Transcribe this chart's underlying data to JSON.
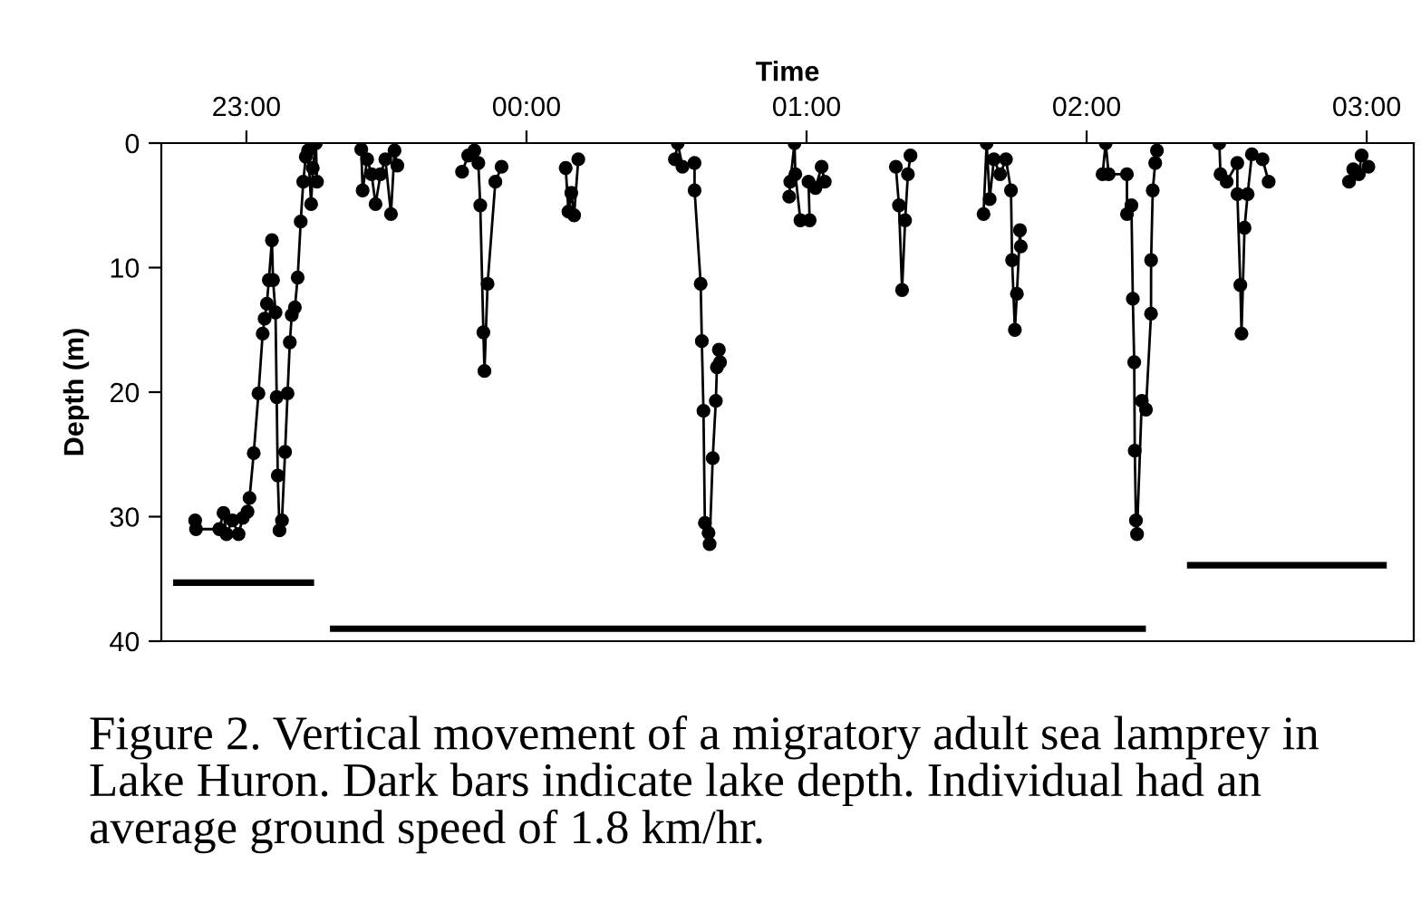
{
  "chart_data": {
    "type": "line",
    "xlabel": "Time",
    "ylabel": "Depth (m)",
    "annotations": [
      "Figure 2. Vertical movement of a migratory adult sea lamprey in Lake Huron. Dark bars indicate lake depth. Individual had an average ground speed of 1.8 km/hr."
    ],
    "xlim": [
      "2000-01-01T22:41:46",
      "2000-01-02T03:10:05"
    ],
    "xticks": [
      {
        "value": "2000-01-01T23:00",
        "label": "23:00"
      },
      {
        "value": "2000-01-02T00:00",
        "label": "00:00"
      },
      {
        "value": "2000-01-02T01:00",
        "label": "01:00"
      },
      {
        "value": "2000-01-02T02:00",
        "label": "02:00"
      },
      {
        "value": "2000-01-02T03:00",
        "label": "03:00"
      }
    ],
    "ylim": [
      40,
      0
    ],
    "yticks": [
      0,
      10,
      20,
      30,
      40
    ],
    "grid": false,
    "series": [
      {
        "color": "#000000",
        "marker": "circle",
        "line_style": "solid",
        "x": [
          "2000-01-01T22:49:01",
          "2000-01-01T22:49:12",
          "2000-01-01T22:54:11",
          "2000-01-01T22:55:05",
          "2000-01-01T22:55:44",
          "2000-01-01T22:57:00",
          "2000-01-01T22:58:19",
          "2000-01-01T22:59:13",
          "2000-01-01T23:00:14",
          "2000-01-01T23:00:40",
          "2000-01-01T23:01:34",
          "2000-01-01T23:02:35",
          "2000-01-01T23:03:29",
          "2000-01-01T23:03:54",
          "2000-01-01T23:04:23",
          "2000-01-01T23:04:48",
          "2000-01-01T23:05:28",
          "2000-01-01T23:05:42",
          "2000-01-01T23:06:14",
          "2000-01-01T23:06:29",
          "2000-01-01T23:06:43",
          "2000-01-01T23:07:05",
          "2000-01-01T23:07:37",
          "2000-01-01T23:08:17",
          "2000-01-01T23:08:49",
          "2000-01-01T23:09:18",
          "2000-01-01T23:09:43",
          "2000-01-01T23:10:23",
          "2000-01-01T23:10:59",
          "2000-01-01T23:11:38",
          "2000-01-01T23:12:11",
          "2000-01-01T23:12:43",
          "2000-01-01T23:13:12",
          "2000-01-01T23:13:52",
          "2000-01-01T23:14:13",
          "2000-01-01T23:14:53",
          "2000-01-01T23:15:07",
          "2000-01-01T23:19:48",
          "2000-01-01T23:24:36",
          "2000-01-01T23:24:54",
          "2000-01-01T23:25:52",
          "2000-01-01T23:26:49",
          "2000-01-01T23:27:40",
          "2000-01-01T23:28:44",
          "2000-01-01T23:29:46",
          "2000-01-01T23:30:58",
          "2000-01-01T23:31:44",
          "2000-01-01T23:32:20",
          "2000-01-01T23:39:00",
          "2000-01-01T23:46:12",
          "2000-01-01T23:47:31",
          "2000-01-01T23:48:50",
          "2000-01-01T23:49:41",
          "2000-01-01T23:50:06",
          "2000-01-01T23:50:46",
          "2000-01-01T23:51:00",
          "2000-01-01T23:51:40",
          "2000-01-01T23:53:20",
          "2000-01-01T23:54:40",
          "2000-01-02T00:01:12",
          "2000-01-02T00:08:24",
          "2000-01-02T00:09:00",
          "2000-01-02T00:09:36",
          "2000-01-02T00:10:12",
          "2000-01-02T00:11:06",
          "2000-01-02T00:21:00",
          "2000-01-02T00:31:48",
          "2000-01-02T00:32:24",
          "2000-01-02T00:33:25",
          "2000-01-02T00:36:00",
          "2000-01-02T00:36:01",
          "2000-01-02T00:37:19",
          "2000-01-02T00:37:34",
          "2000-01-02T00:37:55",
          "2000-01-02T00:38:13",
          "2000-01-02T00:39:00",
          "2000-01-02T00:39:14",
          "2000-01-02T00:39:54",
          "2000-01-02T00:40:34",
          "2000-01-02T00:40:48",
          "2000-01-02T00:41:13",
          "2000-01-02T00:41:28",
          "2000-01-02T00:48:00",
          "2000-01-02T00:56:17",
          "2000-01-02T00:56:31",
          "2000-01-02T00:57:25",
          "2000-01-02T00:57:36",
          "2000-01-02T00:58:41",
          "2000-01-02T01:00:40",
          "2000-01-02T01:00:25",
          "2000-01-02T01:01:55",
          "2000-01-02T01:03:14",
          "2000-01-02T01:03:54",
          "2000-01-02T01:11:24",
          "2000-01-02T01:19:08",
          "2000-01-02T01:19:48",
          "2000-01-02T01:20:28",
          "2000-01-02T01:21:07",
          "2000-01-02T01:21:43",
          "2000-01-02T01:22:16",
          "2000-01-02T01:30:00",
          "2000-01-02T01:37:55",
          "2000-01-02T01:38:35",
          "2000-01-02T01:39:14",
          "2000-01-02T01:40:08",
          "2000-01-02T01:41:28",
          "2000-01-02T01:42:43",
          "2000-01-02T01:43:48",
          "2000-01-02T01:44:02",
          "2000-01-02T01:44:38",
          "2000-01-02T01:45:04",
          "2000-01-02T01:45:43",
          "2000-01-02T01:45:54",
          "2000-01-02T01:54:00",
          "2000-01-02T02:03:25",
          "2000-01-02T02:04:05",
          "2000-01-02T02:04:44",
          "2000-01-02T02:08:38",
          "2000-01-02T02:08:39",
          "2000-01-02T02:09:36",
          "2000-01-02T02:09:54",
          "2000-01-02T02:10:12",
          "2000-01-02T02:10:19",
          "2000-01-02T02:10:34",
          "2000-01-02T02:10:48",
          "2000-01-02T02:11:49",
          "2000-01-02T02:12:43",
          "2000-01-02T02:13:48",
          "2000-01-02T02:13:49",
          "2000-01-02T02:14:10",
          "2000-01-02T02:14:42",
          "2000-01-02T02:15:04",
          "2000-01-02T02:21:36",
          "2000-01-02T02:28:26",
          "2000-01-02T02:28:41",
          "2000-01-02T02:30:00",
          "2000-01-02T02:32:17",
          "2000-01-02T02:32:18",
          "2000-01-02T02:32:56",
          "2000-01-02T02:33:11",
          "2000-01-02T02:33:50",
          "2000-01-02T02:34:30",
          "2000-01-02T02:35:24",
          "2000-01-02T02:37:41",
          "2000-01-02T02:39:00",
          "2000-01-02T02:48:00",
          "2000-01-02T02:56:13",
          "2000-01-02T02:57:07",
          "2000-01-02T02:58:19",
          "2000-01-02T02:58:55",
          "2000-01-02T03:00:22"
        ],
        "values": [
          30.3,
          31.0,
          31.0,
          29.7,
          31.4,
          30.3,
          31.4,
          30.1,
          29.6,
          28.5,
          24.9,
          20.1,
          15.3,
          14.1,
          12.9,
          11.0,
          7.8,
          11.0,
          13.6,
          20.4,
          26.7,
          31.1,
          30.3,
          24.8,
          20.1,
          16.0,
          13.8,
          13.2,
          10.8,
          6.3,
          3.1,
          1.1,
          0.6,
          4.9,
          2.0,
          0,
          3.1,
          null,
          0.5,
          3.8,
          1.3,
          2.5,
          4.9,
          2.5,
          1.3,
          5.7,
          0.6,
          1.8,
          null,
          2.3,
          1.0,
          0.6,
          1.6,
          5.0,
          15.2,
          18.3,
          11.3,
          3.1,
          1.9,
          null,
          2.0,
          5.5,
          4.0,
          5.8,
          1.3,
          null,
          1.3,
          0,
          1.9,
          1.6,
          3.8,
          11.3,
          15.9,
          21.5,
          30.5,
          31.3,
          32.2,
          25.3,
          20.7,
          18.0,
          16.6,
          17.6,
          null,
          4.3,
          3.1,
          0,
          2.5,
          6.2,
          6.2,
          3.1,
          3.6,
          1.9,
          3.1,
          null,
          1.9,
          5.0,
          11.8,
          6.2,
          2.5,
          1.0,
          null,
          5.7,
          0,
          4.5,
          1.3,
          2.5,
          1.3,
          3.8,
          9.4,
          15.0,
          12.1,
          7.0,
          8.3,
          null,
          2.5,
          0,
          2.5,
          2.5,
          5.7,
          5.0,
          12.5,
          17.6,
          24.7,
          30.3,
          31.4,
          20.7,
          21.4,
          13.7,
          9.4,
          3.8,
          1.6,
          0.6,
          null,
          0,
          2.5,
          3.1,
          1.6,
          4.1,
          11.4,
          15.3,
          6.8,
          4.1,
          0.9,
          1.3,
          3.1,
          null,
          3.1,
          2.1,
          2.5,
          1.0,
          1.9
        ]
      },
      {
        "color": "#000000",
        "marker": "none",
        "line_style": "solid",
        "x": [
          "2000-01-01T22:45:00",
          "2000-01-01T23:13:48",
          "2000-01-01T23:16:12",
          "2000-01-01T23:18:36",
          "2000-01-02T02:12:00",
          "2000-01-02T02:16:48",
          "2000-01-02T02:22:12",
          "2000-01-02T03:03:36"
        ],
        "values": [
          35.3,
          35.3,
          null,
          39.0,
          39.0,
          null,
          33.9,
          33.9
        ]
      }
    ]
  }
}
